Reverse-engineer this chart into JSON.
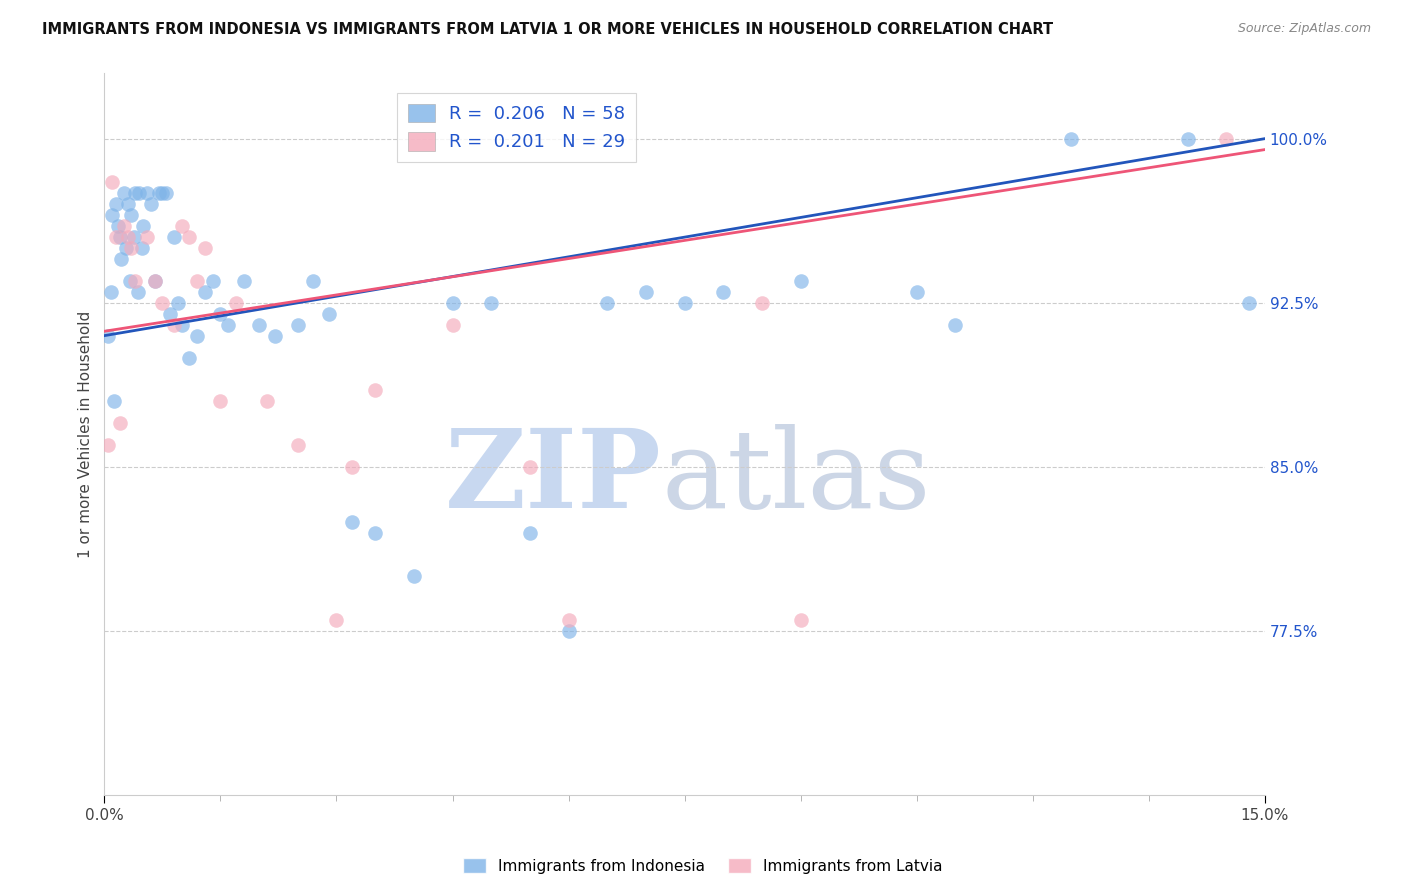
{
  "title": "IMMIGRANTS FROM INDONESIA VS IMMIGRANTS FROM LATVIA 1 OR MORE VEHICLES IN HOUSEHOLD CORRELATION CHART",
  "source": "Source: ZipAtlas.com",
  "ylabel": "1 or more Vehicles in Household",
  "xlim": [
    0.0,
    15.0
  ],
  "ylim": [
    70.0,
    103.0
  ],
  "ytick_vals": [
    77.5,
    85.0,
    92.5,
    100.0
  ],
  "ytick_labels": [
    "77.5%",
    "85.0%",
    "92.5%",
    "100.0%"
  ],
  "legend_blue_R": "0.206",
  "legend_blue_N": "58",
  "legend_pink_R": "0.201",
  "legend_pink_N": "29",
  "legend_label_blue": "Immigrants from Indonesia",
  "legend_label_pink": "Immigrants from Latvia",
  "blue_color": "#7EB3E8",
  "pink_color": "#F4AABB",
  "blue_line_color": "#2255BB",
  "pink_line_color": "#EE5577",
  "trendline_blue_x0": 0.0,
  "trendline_blue_y0": 91.0,
  "trendline_blue_x1": 15.0,
  "trendline_blue_y1": 100.0,
  "trendline_pink_x0": 0.0,
  "trendline_pink_y0": 91.2,
  "trendline_pink_x1": 15.0,
  "trendline_pink_y1": 99.5,
  "indo_x": [
    0.05,
    0.08,
    0.1,
    0.12,
    0.15,
    0.18,
    0.2,
    0.22,
    0.25,
    0.28,
    0.3,
    0.33,
    0.35,
    0.38,
    0.4,
    0.43,
    0.45,
    0.48,
    0.5,
    0.55,
    0.6,
    0.65,
    0.7,
    0.75,
    0.8,
    0.85,
    0.9,
    0.95,
    1.0,
    1.1,
    1.2,
    1.3,
    1.4,
    1.5,
    1.6,
    1.8,
    2.0,
    2.2,
    2.5,
    2.7,
    2.9,
    3.2,
    3.5,
    4.0,
    4.5,
    5.0,
    5.5,
    6.0,
    6.5,
    7.0,
    7.5,
    8.0,
    9.0,
    10.5,
    11.0,
    12.5,
    14.0,
    14.8
  ],
  "indo_y": [
    91.0,
    93.0,
    96.5,
    88.0,
    97.0,
    96.0,
    95.5,
    94.5,
    97.5,
    95.0,
    97.0,
    93.5,
    96.5,
    95.5,
    97.5,
    93.0,
    97.5,
    95.0,
    96.0,
    97.5,
    97.0,
    93.5,
    97.5,
    97.5,
    97.5,
    92.0,
    95.5,
    92.5,
    91.5,
    90.0,
    91.0,
    93.0,
    93.5,
    92.0,
    91.5,
    93.5,
    91.5,
    91.0,
    91.5,
    93.5,
    92.0,
    82.5,
    82.0,
    80.0,
    92.5,
    92.5,
    82.0,
    77.5,
    92.5,
    93.0,
    92.5,
    93.0,
    93.5,
    93.0,
    91.5,
    100.0,
    100.0,
    92.5
  ],
  "latvia_x": [
    0.05,
    0.1,
    0.15,
    0.2,
    0.25,
    0.3,
    0.35,
    0.4,
    0.55,
    0.65,
    0.75,
    0.9,
    1.0,
    1.1,
    1.2,
    1.3,
    1.5,
    1.7,
    2.1,
    2.5,
    3.0,
    3.5,
    4.5,
    5.5,
    6.0,
    8.5,
    9.0,
    14.5,
    3.2
  ],
  "latvia_y": [
    86.0,
    98.0,
    95.5,
    87.0,
    96.0,
    95.5,
    95.0,
    93.5,
    95.5,
    93.5,
    92.5,
    91.5,
    96.0,
    95.5,
    93.5,
    95.0,
    88.0,
    92.5,
    88.0,
    86.0,
    78.0,
    88.5,
    91.5,
    85.0,
    78.0,
    92.5,
    78.0,
    100.0,
    85.0
  ]
}
